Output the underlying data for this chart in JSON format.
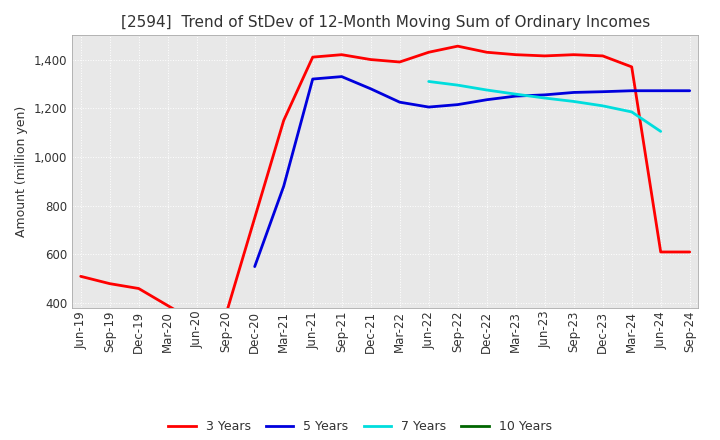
{
  "title": "[2594]  Trend of StDev of 12-Month Moving Sum of Ordinary Incomes",
  "ylabel": "Amount (million yen)",
  "ylim": [
    380,
    1500
  ],
  "yticks": [
    400,
    600,
    800,
    1000,
    1200,
    1400
  ],
  "xticks": [
    "Jun-19",
    "Sep-19",
    "Dec-19",
    "Mar-20",
    "Jun-20",
    "Sep-20",
    "Dec-20",
    "Mar-21",
    "Jun-21",
    "Sep-21",
    "Dec-21",
    "Mar-22",
    "Jun-22",
    "Sep-22",
    "Dec-22",
    "Mar-23",
    "Jun-23",
    "Sep-23",
    "Dec-23",
    "Mar-24",
    "Jun-24",
    "Sep-24"
  ],
  "series": [
    {
      "label": "3 Years",
      "color": "#ff0000",
      "data": [
        510,
        480,
        460,
        390,
        320,
        350,
        750,
        1150,
        1410,
        1420,
        1400,
        1390,
        1430,
        1455,
        1430,
        1420,
        1415,
        1420,
        1415,
        1370,
        610,
        610
      ]
    },
    {
      "label": "5 Years",
      "color": "#0000dd",
      "data": [
        null,
        null,
        null,
        null,
        null,
        null,
        550,
        880,
        1320,
        1330,
        1280,
        1225,
        1205,
        1215,
        1235,
        1250,
        1255,
        1265,
        1268,
        1272,
        1272,
        1272
      ]
    },
    {
      "label": "7 Years",
      "color": "#00dddd",
      "data": [
        null,
        null,
        null,
        null,
        null,
        null,
        null,
        null,
        null,
        null,
        null,
        null,
        1310,
        1295,
        1275,
        1258,
        1242,
        1228,
        1210,
        1185,
        1105,
        null
      ]
    },
    {
      "label": "10 Years",
      "color": "#006600",
      "data": [
        null,
        null,
        null,
        null,
        null,
        null,
        null,
        null,
        null,
        null,
        null,
        null,
        null,
        null,
        null,
        null,
        null,
        null,
        null,
        null,
        null,
        null
      ]
    }
  ],
  "background_color": "#e8e8e8",
  "grid_color": "#ffffff",
  "title_fontsize": 11,
  "axis_fontsize": 9,
  "tick_fontsize": 8.5,
  "linewidth": 2.0
}
